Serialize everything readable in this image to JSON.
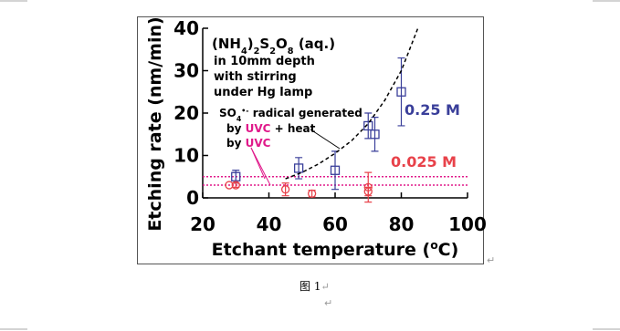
{
  "caption": "图 1",
  "paragraph_mark": "↵",
  "chart_data": {
    "type": "scatter",
    "x_label": [
      {
        "text": "Etchant temperature ("
      },
      {
        "text": "o",
        "script": "sup"
      },
      {
        "text": "C)"
      }
    ],
    "y_label": "Etching rate (nm/min)",
    "xlim": [
      20,
      100
    ],
    "xticks": [
      20,
      40,
      60,
      80,
      100
    ],
    "ylim": [
      0,
      40
    ],
    "yticks": [
      0,
      10,
      20,
      30,
      40
    ],
    "series": [
      {
        "name": "0.25 M",
        "color": "#3a3f9a",
        "marker": "square",
        "x": [
          30,
          49,
          60,
          70,
          72,
          80
        ],
        "values": [
          5,
          7,
          6.5,
          17,
          15,
          25
        ],
        "errors": [
          1.5,
          2.5,
          4.5,
          3,
          4,
          8
        ]
      },
      {
        "name": "0.025 M",
        "color": "#e8424a",
        "marker": "circle",
        "x": [
          28,
          30,
          45,
          53,
          70,
          70
        ],
        "values": [
          3,
          3,
          2,
          1,
          2.5,
          1.5
        ],
        "errors": [
          null,
          0.5,
          1.5,
          0.8,
          3.5,
          1
        ]
      },
      {
        "name": "fit",
        "color": "#000000",
        "marker": "dashed-line",
        "x": [
          45,
          50,
          55,
          60,
          65,
          70,
          75,
          80,
          85
        ],
        "values": [
          4.5,
          6,
          8,
          10.5,
          13.5,
          17.5,
          23,
          30,
          40
        ]
      }
    ],
    "reference_lines": [
      {
        "value": 5,
        "color": "#e0198a"
      },
      {
        "value": 3,
        "color": "#e0198a"
      }
    ],
    "annotations": [
      [
        {
          "text": "(NH"
        },
        {
          "text": "4",
          "script": "sub"
        },
        {
          "text": ")"
        },
        {
          "text": "2",
          "script": "sub"
        },
        {
          "text": "S"
        },
        {
          "text": "2",
          "script": "sub"
        },
        {
          "text": "O"
        },
        {
          "text": "8",
          "script": "sub"
        },
        {
          "text": " (aq.)"
        }
      ],
      [
        {
          "text": "in 10mm depth"
        }
      ],
      [
        {
          "text": "with stirring"
        }
      ],
      [
        {
          "text": "under Hg lamp"
        }
      ],
      [
        {
          "text": "SO"
        },
        {
          "text": "4",
          "script": "sub"
        },
        {
          "text": "•-",
          "script": "sup"
        },
        {
          "text": " radical generated"
        }
      ],
      [
        {
          "text": "by "
        },
        {
          "text": "UVC",
          "color": "#e0198a"
        },
        {
          "text": " + heat"
        }
      ],
      [
        {
          "text": "by "
        },
        {
          "text": "UVC",
          "color": "#e0198a"
        }
      ],
      [
        {
          "text": "0.25 M",
          "color": "#3a3f9a"
        }
      ],
      [
        {
          "text": "0.025 M",
          "color": "#e8424a"
        }
      ]
    ]
  }
}
